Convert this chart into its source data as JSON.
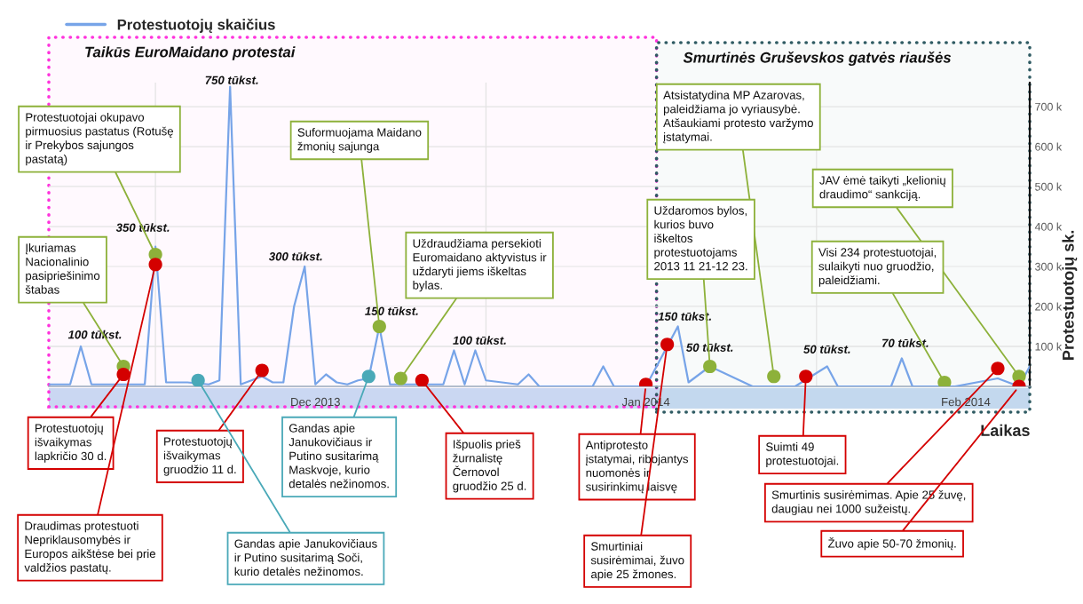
{
  "chart_data": {
    "type": "line",
    "xlabel": "Laikas",
    "ylabel": "Protestuotojų sk.",
    "xlim": [
      "2013-11-21",
      "2014-02-21"
    ],
    "ylim": [
      0,
      760000
    ],
    "xticks": [
      {
        "value": "2013-12-01",
        "label": null
      },
      {
        "value": "2013-12-16",
        "label": "Dec 2013"
      },
      {
        "value": "2014-01-01",
        "label": null
      },
      {
        "value": "2014-01-16",
        "label": "Jan 2014"
      },
      {
        "value": "2014-02-01",
        "label": null
      },
      {
        "value": "2014-02-15",
        "label": "Feb 2014"
      }
    ],
    "yticks": [
      {
        "value": 100000,
        "label": "100 k"
      },
      {
        "value": 200000,
        "label": "200 k"
      },
      {
        "value": 300000,
        "label": "300 k"
      },
      {
        "value": 400000,
        "label": "400 k"
      },
      {
        "value": 500000,
        "label": "500 k"
      },
      {
        "value": 600000,
        "label": "600 k"
      },
      {
        "value": 700000,
        "label": "700 k"
      }
    ],
    "grid": true,
    "legend": "top left",
    "series": [
      {
        "name": "Protestuotojų skaičius",
        "color": "#77a4e8",
        "x": [
          "2013-11-21",
          "2013-11-23",
          "2013-11-24",
          "2013-11-25",
          "2013-11-27",
          "2013-11-30",
          "2013-12-01",
          "2013-12-02",
          "2013-12-04",
          "2013-12-06",
          "2013-12-07",
          "2013-12-08",
          "2013-12-09",
          "2013-12-10",
          "2013-12-11",
          "2013-12-12",
          "2013-12-13",
          "2013-12-14",
          "2013-12-15",
          "2013-12-16",
          "2013-12-17",
          "2013-12-18",
          "2013-12-19",
          "2013-12-20",
          "2013-12-21",
          "2013-12-22",
          "2013-12-23",
          "2013-12-28",
          "2013-12-29",
          "2013-12-30",
          "2013-12-31",
          "2014-01-01",
          "2014-01-04",
          "2014-01-05",
          "2014-01-06",
          "2014-01-11",
          "2014-01-12",
          "2014-01-13",
          "2014-01-16",
          "2014-01-19",
          "2014-01-20",
          "2014-01-22",
          "2014-01-26",
          "2014-01-30",
          "2014-02-02",
          "2014-02-03",
          "2014-02-08",
          "2014-02-09",
          "2014-02-10",
          "2014-02-14",
          "2014-02-18",
          "2014-02-20",
          "2014-02-21"
        ],
        "values": [
          5000,
          5000,
          100000,
          5000,
          5000,
          5000,
          350000,
          10000,
          10000,
          5000,
          15000,
          750000,
          5000,
          15000,
          25000,
          10000,
          10000,
          200000,
          300000,
          5000,
          30000,
          10000,
          5000,
          15000,
          20000,
          150000,
          5000,
          5000,
          90000,
          5000,
          90000,
          15000,
          5000,
          30000,
          0,
          0,
          50000,
          0,
          0,
          150000,
          10000,
          50000,
          0,
          0,
          50000,
          0,
          0,
          70000,
          0,
          0,
          20000,
          0,
          50000
        ]
      },
      {
        "type": "scatter",
        "marker": "circle",
        "color": "#8db13a",
        "x": [
          "2013-11-28",
          "2013-12-01",
          "2013-12-22",
          "2013-12-24",
          "2014-01-22",
          "2014-01-28",
          "2014-02-13",
          "2014-02-20"
        ],
        "values": [
          50000,
          330000,
          150000,
          20000,
          50000,
          25000,
          10000,
          25000
        ]
      },
      {
        "type": "scatter",
        "marker": "circle",
        "color": "#d40000",
        "x": [
          "2013-11-28",
          "2013-12-01",
          "2013-12-11",
          "2013-12-26",
          "2014-01-16",
          "2014-01-18",
          "2014-01-31",
          "2014-02-18",
          "2014-02-20"
        ],
        "values": [
          30000,
          305000,
          40000,
          15000,
          5000,
          105000,
          25000,
          45000,
          0
        ]
      },
      {
        "type": "scatter",
        "marker": "circle",
        "color": "#4aa9b8",
        "x": [
          "2013-12-05",
          "2013-12-21"
        ],
        "values": [
          15000,
          25000
        ]
      }
    ],
    "bands": [
      {
        "axis": "x",
        "from": "2013-11-21",
        "to": "2014-01-17",
        "label": "Taikūs EuroMaidano protestai",
        "color": "#ff33dd"
      },
      {
        "axis": "x",
        "from": "2014-01-17",
        "to": "2014-02-21",
        "label": "Smurtinės Gruševskos gatvės riaušės",
        "color": "#2f5b63"
      }
    ],
    "annotations": [
      {
        "text": "100 tūkst.",
        "x": "2013-11-24",
        "y": 100000
      },
      {
        "text": "350 tūkst.",
        "x": "2013-12-01",
        "y": 350000
      },
      {
        "text": "750 tūkst.",
        "x": "2013-12-08",
        "y": 750000
      },
      {
        "text": "300 tūkst.",
        "x": "2013-12-15",
        "y": 300000
      },
      {
        "text": "150 tūkst.",
        "x": "2013-12-22",
        "y": 150000
      },
      {
        "text": "100 tūkst.",
        "x": "2013-12-31",
        "y": 90000
      },
      {
        "text": "150 tūkst.",
        "x": "2014-01-19",
        "y": 150000
      },
      {
        "text": "50 tūkst.",
        "x": "2014-01-22",
        "y": 50000
      },
      {
        "text": "50 tūkst.",
        "x": "2014-02-02",
        "y": 50000
      },
      {
        "text": "70 tūkst.",
        "x": "2014-02-09",
        "y": 70000
      },
      {
        "text": "Protestuotojai okupavo\npirmuosius pastatus (Rotušę\nir Prekybos sajungos\npastatą)",
        "x": "2013-12-01",
        "y": 330000
      },
      {
        "text": "Įkuriamas\nNacionalinio\npasipriešinimo\nštabas",
        "x": "2013-11-28",
        "y": 50000
      },
      {
        "text": "Suformuojama Maidano\nžmonių sajunga",
        "x": "2013-12-22",
        "y": 150000
      },
      {
        "text": "Uždraudžiama persekioti\nEuromaidano aktyvistus ir\nuždaryti jiems iškeltas\nbylas.",
        "x": "2013-12-24",
        "y": 20000
      },
      {
        "text": "Atsistatydina MP Azarovas,\npaleidžiama jo vyriausybė.\nAtšaukiami protesto varžymo\nįstatymai.",
        "x": "2014-01-28",
        "y": 25000
      },
      {
        "text": "Uždaromos bylos,\nkurios buvo\niškeltos\nprotestuotojams\n2013 11 21-12 23.",
        "x": "2014-01-22",
        "y": 50000
      },
      {
        "text": "JAV ėmė taikyti „kelionių\ndraudimo“ sankciją.",
        "x": "2014-02-20",
        "y": 25000
      },
      {
        "text": "Visi 234 protestuotojai,\nsulaikyti nuo gruodžio,\npaleidžiami.",
        "x": "2014-02-13",
        "y": 10000
      },
      {
        "text": "Protestuotojų\nišvaikymas\nlapkričio 30 d.",
        "x": "2013-11-28",
        "y": 30000
      },
      {
        "text": "Draudimas protestuoti\nNepriklausomybės ir\nEuropos aikštėse bei prie\nvaldžios pastatų.",
        "x": "2013-12-01",
        "y": 305000
      },
      {
        "text": "Protestuotojų\nišvaikymas\ngruodžio 11 d.",
        "x": "2013-12-11",
        "y": 40000
      },
      {
        "text": "Gandas apie Janukovičiaus\nir Putino susitarimą Soči,\nkurio detalės nežinomos.",
        "x": "2013-12-05",
        "y": 15000
      },
      {
        "text": "Gandas apie\nJanukovičiaus ir\nPutino susitarimą\nMaskvoje, kurio\ndetalės nežinomos.",
        "x": "2013-12-21",
        "y": 25000
      },
      {
        "text": "Išpuolis prieš\nžurnalistę\nČernovol\ngruodžio 25 d.",
        "x": "2013-12-26",
        "y": 15000
      },
      {
        "text": "Antiprotesto\nįstatymai, ribojantys\nnuomonės ir\nsusirinkimų laisvę",
        "x": "2014-01-16",
        "y": 5000
      },
      {
        "text": "Smurtiniai\nsusirėmimai, žuvo\napie 25 žmones.",
        "x": "2014-01-18",
        "y": 105000
      },
      {
        "text": "Suimti 49\nprotestuotojai.",
        "x": "2014-01-31",
        "y": 25000
      },
      {
        "text": "Smurtinis susirėmimas. Apie 25 žuvę,\ndaugiau nei 1000 sužeistų.",
        "x": "2014-02-18",
        "y": 45000
      },
      {
        "text": "Žuvo apie 50-70 žmonių.",
        "x": "2014-02-20",
        "y": 0
      }
    ]
  }
}
